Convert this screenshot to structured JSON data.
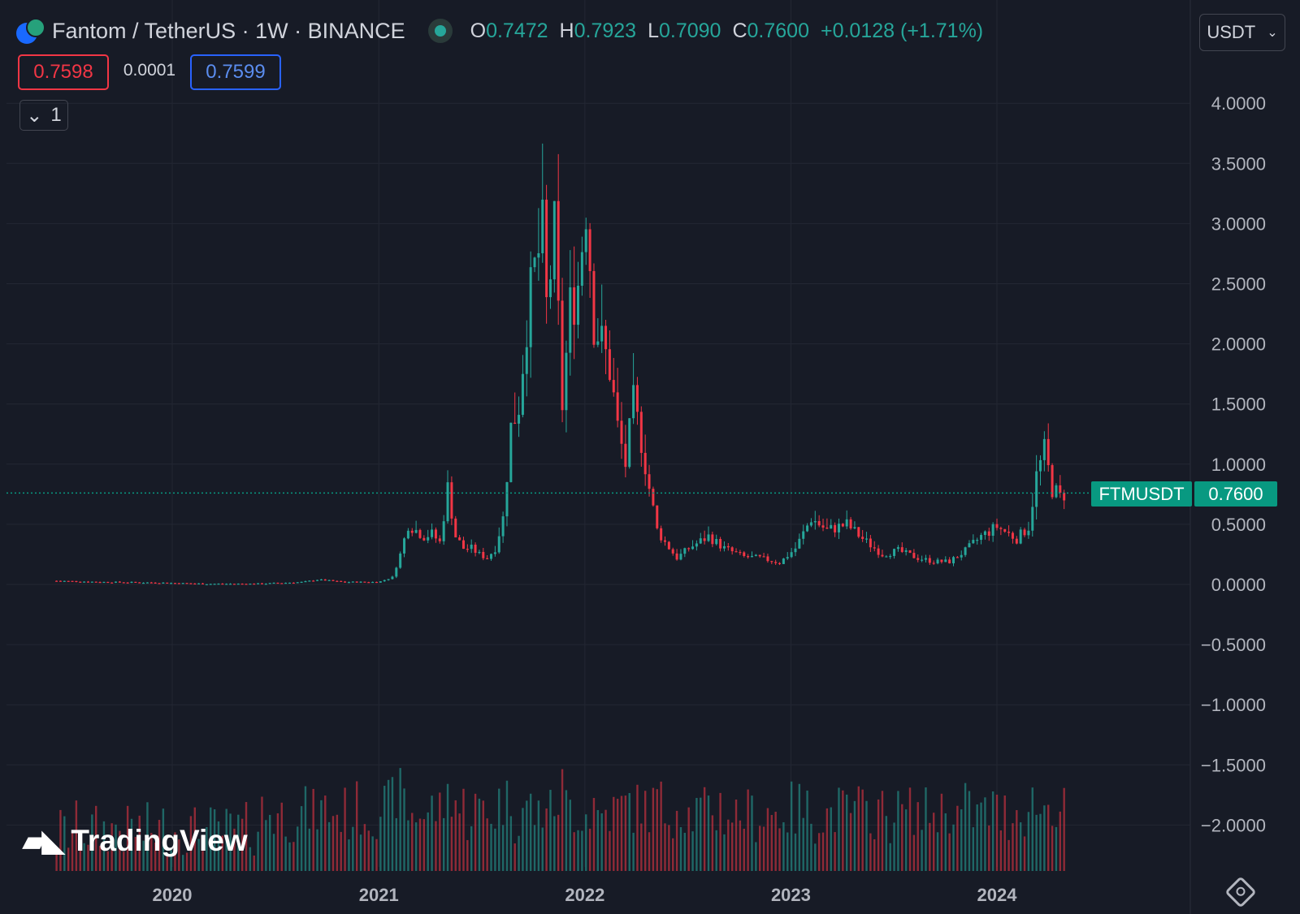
{
  "header": {
    "symbol_title": "Fantom / TetherUS · 1W · BINANCE",
    "ohlc": {
      "open_key": "O",
      "open": "0.7472",
      "high_key": "H",
      "high": "0.7923",
      "low_key": "L",
      "low": "0.7090",
      "close_key": "C",
      "close": "0.7600",
      "change": "+0.0128 (+1.71%)"
    }
  },
  "trade": {
    "sell": "0.7598",
    "spread": "0.0001",
    "buy": "0.7599"
  },
  "indicators_toggle": {
    "label": "1",
    "icon": "chevron-down-icon"
  },
  "currency_select": {
    "value": "USDT",
    "icon": "chevron-down-icon"
  },
  "price_tag": {
    "symbol": "FTMUSDT",
    "value": "0.7600"
  },
  "watermark": "TradingView",
  "colors": {
    "up": "#26a69a",
    "down": "#f23645",
    "accent_green": "#089981",
    "background": "#171b26",
    "grid": "#232733",
    "text": "#b2b5be"
  },
  "chart_data": {
    "type": "candlestick",
    "interval": "1W",
    "grid": true,
    "y_axis": {
      "ticks": [
        "4.0000",
        "3.5000",
        "3.0000",
        "2.5000",
        "2.0000",
        "1.5000",
        "1.0000",
        "0.5000",
        "0.0000",
        "−0.5000",
        "−1.0000",
        "−1.5000",
        "−2.0000"
      ],
      "range": [
        -2.5,
        4.25
      ]
    },
    "x_axis": {
      "ticks": [
        "2020",
        "2021",
        "2022",
        "2023",
        "2024"
      ]
    },
    "current_price": 0.76,
    "price_path": [
      [
        "2019-06-10",
        0.03
      ],
      [
        "2019-09-01",
        0.02
      ],
      [
        "2019-12-01",
        0.015
      ],
      [
        "2020-03-01",
        0.005
      ],
      [
        "2020-06-01",
        0.005
      ],
      [
        "2020-08-20",
        0.02
      ],
      [
        "2020-09-15",
        0.04
      ],
      [
        "2020-11-01",
        0.02
      ],
      [
        "2021-01-01",
        0.02
      ],
      [
        "2021-01-25",
        0.06
      ],
      [
        "2021-02-08",
        0.25
      ],
      [
        "2021-02-22",
        0.5
      ],
      [
        "2021-03-08",
        0.45
      ],
      [
        "2021-03-22",
        0.4
      ],
      [
        "2021-04-05",
        0.42
      ],
      [
        "2021-04-19",
        0.35
      ],
      [
        "2021-05-03",
        0.8
      ],
      [
        "2021-05-17",
        0.4
      ],
      [
        "2021-05-31",
        0.3
      ],
      [
        "2021-06-14",
        0.3
      ],
      [
        "2021-06-28",
        0.25
      ],
      [
        "2021-07-12",
        0.22
      ],
      [
        "2021-07-26",
        0.3
      ],
      [
        "2021-08-09",
        0.55
      ],
      [
        "2021-08-23",
        1.3
      ],
      [
        "2021-09-06",
        1.5
      ],
      [
        "2021-09-20",
        2.2
      ],
      [
        "2021-10-04",
        2.6
      ],
      [
        "2021-10-18",
        2.9
      ],
      [
        "2021-10-25",
        2.3
      ],
      [
        "2021-11-08",
        2.9
      ],
      [
        "2021-11-22",
        1.5
      ],
      [
        "2021-12-06",
        2.3
      ],
      [
        "2021-12-20",
        2.5
      ],
      [
        "2022-01-03",
        3.2
      ],
      [
        "2022-01-17",
        2.2
      ],
      [
        "2022-01-31",
        2.0
      ],
      [
        "2022-02-14",
        1.8
      ],
      [
        "2022-02-28",
        1.3
      ],
      [
        "2022-03-14",
        1.0
      ],
      [
        "2022-03-28",
        1.5
      ],
      [
        "2022-04-11",
        1.2
      ],
      [
        "2022-04-25",
        0.8
      ],
      [
        "2022-05-09",
        0.45
      ],
      [
        "2022-05-23",
        0.35
      ],
      [
        "2022-06-13",
        0.22
      ],
      [
        "2022-07-04",
        0.3
      ],
      [
        "2022-08-08",
        0.4
      ],
      [
        "2022-09-05",
        0.3
      ],
      [
        "2022-10-10",
        0.23
      ],
      [
        "2022-11-07",
        0.22
      ],
      [
        "2022-12-12",
        0.18
      ],
      [
        "2023-01-09",
        0.3
      ],
      [
        "2023-02-06",
        0.55
      ],
      [
        "2023-03-06",
        0.45
      ],
      [
        "2023-04-10",
        0.5
      ],
      [
        "2023-05-08",
        0.38
      ],
      [
        "2023-06-12",
        0.25
      ],
      [
        "2023-07-10",
        0.28
      ],
      [
        "2023-08-14",
        0.22
      ],
      [
        "2023-09-11",
        0.19
      ],
      [
        "2023-10-09",
        0.19
      ],
      [
        "2023-11-06",
        0.28
      ],
      [
        "2023-12-04",
        0.4
      ],
      [
        "2024-01-01",
        0.48
      ],
      [
        "2024-02-05",
        0.38
      ],
      [
        "2024-02-26",
        0.48
      ],
      [
        "2024-03-11",
        0.9
      ],
      [
        "2024-03-25",
        1.1
      ],
      [
        "2024-04-08",
        0.8
      ],
      [
        "2024-04-22",
        0.72
      ],
      [
        "2024-04-29",
        0.76
      ]
    ]
  }
}
